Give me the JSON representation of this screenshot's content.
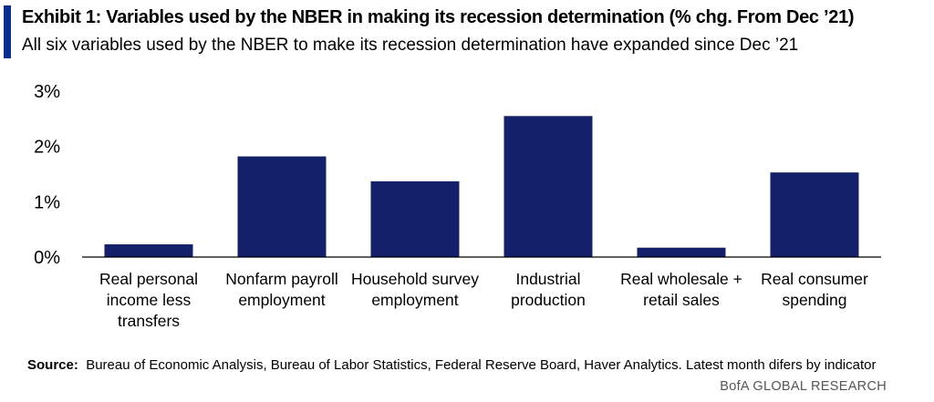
{
  "header": {
    "title": "Exhibit 1: Variables used by the NBER in making its recession determination (% chg. From Dec ’21)",
    "subtitle": "All six variables used by the NBER to make its recession determination have expanded since Dec ’21"
  },
  "footer": {
    "source_label": "Source:",
    "source_text": "Bureau of Economic  Analysis, Bureau of Labor Statistics, Federal Reserve Board, Haver Analytics. Latest month difers by indicator",
    "brand": "BofA GLOBAL RESEARCH"
  },
  "colors": {
    "accent": "#0A2A8C",
    "bar": "#14216A",
    "axis": "#000000"
  },
  "chart_data": {
    "type": "bar",
    "categories": [
      [
        "Real personal",
        "income less",
        "transfers"
      ],
      [
        "Nonfarm payroll",
        "employment"
      ],
      [
        "Household survey",
        "employment"
      ],
      [
        "Industrial",
        "production"
      ],
      [
        "Real wholesale +",
        "retail sales"
      ],
      [
        "Real consumer",
        "spending"
      ]
    ],
    "values": [
      0.23,
      1.82,
      1.37,
      2.55,
      0.17,
      1.53
    ],
    "unit": "%",
    "ylim": [
      0,
      3
    ],
    "yticks": [
      0,
      1,
      2,
      3
    ],
    "ytick_labels": [
      "0%",
      "1%",
      "2%",
      "3%"
    ],
    "grid": false
  }
}
